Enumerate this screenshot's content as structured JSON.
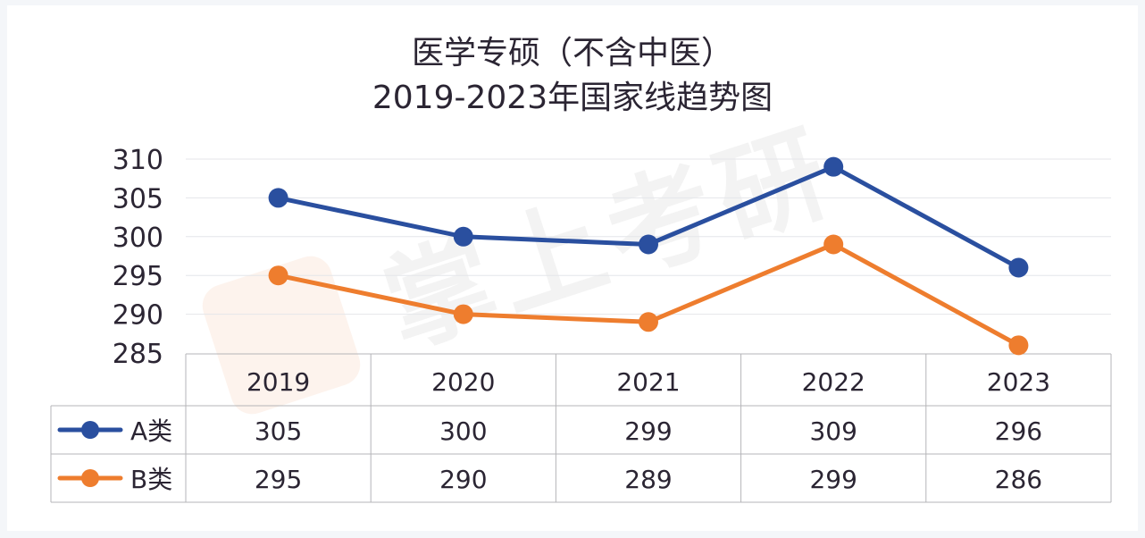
{
  "chart_data": {
    "type": "line",
    "title": "医学专硕（不含中医）",
    "subtitle": "2019-2023年国家线趋势图",
    "categories": [
      "2019",
      "2020",
      "2021",
      "2022",
      "2023"
    ],
    "series": [
      {
        "name": "A类",
        "values": [
          305,
          300,
          299,
          309,
          296
        ],
        "color": "#2a4f9f"
      },
      {
        "name": "B类",
        "values": [
          295,
          290,
          289,
          299,
          286
        ],
        "color": "#ee7d2e"
      }
    ],
    "ylim": [
      285,
      310
    ],
    "yticks": [
      "310",
      "305",
      "300",
      "295",
      "290",
      "285"
    ],
    "grid": true,
    "legend": "data-table-left",
    "data_table": true
  },
  "watermark": "掌上考研"
}
